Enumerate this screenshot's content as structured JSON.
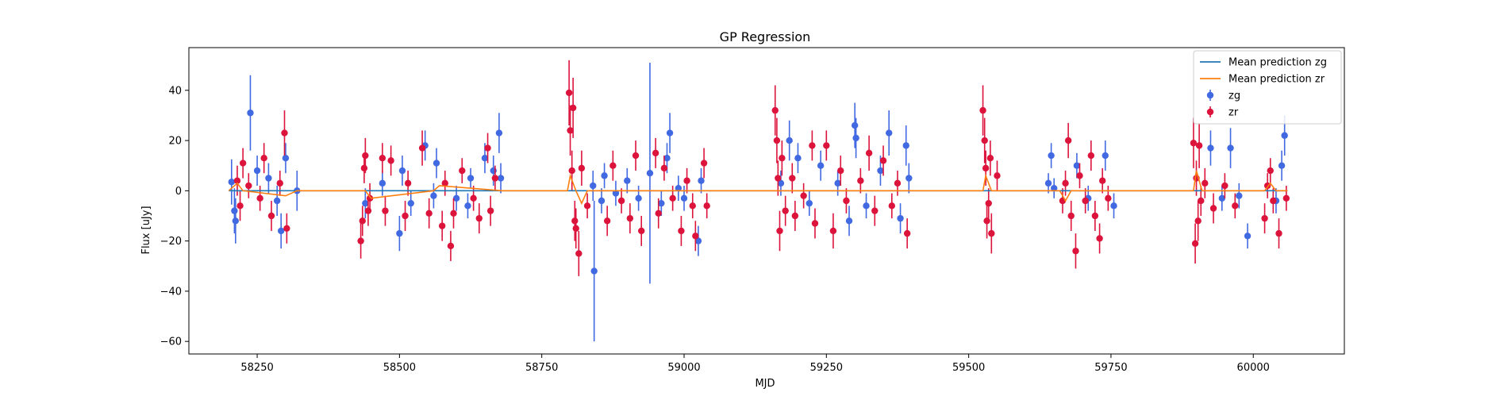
{
  "chart_data": {
    "type": "scatter",
    "title": "GP Regression",
    "xlabel": "MJD",
    "ylabel": "Flux [uJy]",
    "xlim": [
      58130,
      60160
    ],
    "ylim": [
      -65,
      57
    ],
    "xticks": [
      58250,
      58500,
      58750,
      59000,
      59250,
      59500,
      59750,
      60000
    ],
    "yticks": [
      -60,
      -40,
      -20,
      0,
      20,
      40
    ],
    "grid": false,
    "legend_position": "top-right",
    "colors": {
      "mean_zg": "#1f77b4",
      "mean_zr": "#ff7f0e",
      "zg": "#4169e1",
      "zr": "#dc143c"
    },
    "series": [
      {
        "name": "Mean prediction zg",
        "kind": "line",
        "x": [
          58200,
          58320,
          58440,
          58680,
          58800,
          59040,
          59160,
          59400,
          59520,
          59560,
          59640,
          59770,
          59900,
          60060
        ],
        "y": [
          0,
          0,
          0,
          0,
          0,
          0,
          0,
          0,
          0,
          0,
          0,
          0,
          0,
          0
        ]
      },
      {
        "name": "Mean prediction zr",
        "kind": "line",
        "x": [
          58200,
          58215,
          58225,
          58300,
          58320,
          58440,
          58450,
          58560,
          58570,
          58680,
          58795,
          58800,
          58810,
          58820,
          58830,
          59040,
          59160,
          59400,
          59525,
          59530,
          59540,
          59560,
          59660,
          59670,
          59680,
          59760,
          59895,
          59900,
          59910,
          60020,
          60030,
          60040,
          60060
        ],
        "y": [
          0,
          3,
          0,
          -2,
          0,
          0,
          -3,
          0,
          2,
          0,
          0,
          6,
          0,
          -5,
          0,
          0,
          0,
          0,
          0,
          6,
          0,
          0,
          0,
          -4,
          0,
          0,
          0,
          8,
          0,
          0,
          3,
          0,
          0
        ]
      },
      {
        "name": "zg",
        "kind": "errorbar",
        "points": [
          {
            "x": 58205,
            "y": 3.5,
            "e": 9
          },
          {
            "x": 58210,
            "y": -8,
            "e": 9
          },
          {
            "x": 58212,
            "y": -12,
            "e": 9
          },
          {
            "x": 58238,
            "y": 31,
            "e": 15
          },
          {
            "x": 58250,
            "y": 8,
            "e": 6
          },
          {
            "x": 58270,
            "y": 5,
            "e": 6
          },
          {
            "x": 58285,
            "y": -4,
            "e": 6
          },
          {
            "x": 58292,
            "y": -16,
            "e": 7
          },
          {
            "x": 58300,
            "y": 13,
            "e": 6
          },
          {
            "x": 58320,
            "y": 0,
            "e": 8
          },
          {
            "x": 58440,
            "y": -5,
            "e": 6
          },
          {
            "x": 58470,
            "y": 3,
            "e": 5
          },
          {
            "x": 58500,
            "y": -17,
            "e": 7
          },
          {
            "x": 58505,
            "y": 8,
            "e": 6
          },
          {
            "x": 58520,
            "y": -5,
            "e": 5
          },
          {
            "x": 58545,
            "y": 18,
            "e": 6
          },
          {
            "x": 58560,
            "y": -2,
            "e": 5
          },
          {
            "x": 58565,
            "y": 11,
            "e": 6
          },
          {
            "x": 58600,
            "y": -3,
            "e": 5
          },
          {
            "x": 58620,
            "y": -6,
            "e": 5
          },
          {
            "x": 58625,
            "y": 5,
            "e": 4
          },
          {
            "x": 58650,
            "y": 13,
            "e": 6
          },
          {
            "x": 58665,
            "y": 8,
            "e": 6
          },
          {
            "x": 58675,
            "y": 23,
            "e": 8
          },
          {
            "x": 58678,
            "y": 5,
            "e": 6
          },
          {
            "x": 58840,
            "y": 2,
            "e": 6
          },
          {
            "x": 58842,
            "y": -32,
            "e": 28
          },
          {
            "x": 58855,
            "y": -4,
            "e": 5
          },
          {
            "x": 58860,
            "y": 6,
            "e": 5
          },
          {
            "x": 58880,
            "y": -1,
            "e": 5
          },
          {
            "x": 58900,
            "y": 4,
            "e": 5
          },
          {
            "x": 58920,
            "y": -3,
            "e": 5
          },
          {
            "x": 58940,
            "y": 7,
            "e": 44
          },
          {
            "x": 58960,
            "y": -5,
            "e": 5
          },
          {
            "x": 58970,
            "y": 13,
            "e": 6
          },
          {
            "x": 58975,
            "y": 23,
            "e": 8
          },
          {
            "x": 58990,
            "y": 1,
            "e": 5
          },
          {
            "x": 59000,
            "y": -3,
            "e": 5
          },
          {
            "x": 59025,
            "y": -20,
            "e": 6
          },
          {
            "x": 59030,
            "y": 4,
            "e": 5
          },
          {
            "x": 59170,
            "y": 3,
            "e": 5
          },
          {
            "x": 59185,
            "y": 20,
            "e": 8
          },
          {
            "x": 59200,
            "y": 13,
            "e": 6
          },
          {
            "x": 59220,
            "y": -5,
            "e": 5
          },
          {
            "x": 59240,
            "y": 10,
            "e": 6
          },
          {
            "x": 59270,
            "y": 3,
            "e": 5
          },
          {
            "x": 59290,
            "y": -12,
            "e": 6
          },
          {
            "x": 59300,
            "y": 26,
            "e": 9
          },
          {
            "x": 59302,
            "y": 21,
            "e": 8
          },
          {
            "x": 59320,
            "y": -6,
            "e": 5
          },
          {
            "x": 59345,
            "y": 8,
            "e": 6
          },
          {
            "x": 59360,
            "y": 23,
            "e": 9
          },
          {
            "x": 59380,
            "y": -11,
            "e": 6
          },
          {
            "x": 59390,
            "y": 18,
            "e": 8
          },
          {
            "x": 59395,
            "y": 5,
            "e": 6
          },
          {
            "x": 59640,
            "y": 3,
            "e": 4
          },
          {
            "x": 59645,
            "y": 14,
            "e": 5
          },
          {
            "x": 59650,
            "y": 1,
            "e": 4
          },
          {
            "x": 59690,
            "y": 10,
            "e": 5
          },
          {
            "x": 59710,
            "y": -3,
            "e": 5
          },
          {
            "x": 59740,
            "y": 14,
            "e": 6
          },
          {
            "x": 59755,
            "y": -6,
            "e": 5
          },
          {
            "x": 59925,
            "y": 17,
            "e": 7
          },
          {
            "x": 59945,
            "y": -3,
            "e": 5
          },
          {
            "x": 59960,
            "y": 17,
            "e": 8
          },
          {
            "x": 59975,
            "y": -2,
            "e": 5
          },
          {
            "x": 59990,
            "y": -18,
            "e": 5
          },
          {
            "x": 60040,
            "y": -4,
            "e": 5
          },
          {
            "x": 60050,
            "y": 10,
            "e": 6
          },
          {
            "x": 60055,
            "y": 22,
            "e": 8
          }
        ]
      },
      {
        "name": "zr",
        "kind": "errorbar",
        "points": [
          {
            "x": 58215,
            "y": 4,
            "e": 6
          },
          {
            "x": 58220,
            "y": -6,
            "e": 6
          },
          {
            "x": 58225,
            "y": 11,
            "e": 6
          },
          {
            "x": 58235,
            "y": 2,
            "e": 5
          },
          {
            "x": 58255,
            "y": -3,
            "e": 5
          },
          {
            "x": 58262,
            "y": 13,
            "e": 6
          },
          {
            "x": 58275,
            "y": -10,
            "e": 6
          },
          {
            "x": 58290,
            "y": 3,
            "e": 5
          },
          {
            "x": 58298,
            "y": 23,
            "e": 9
          },
          {
            "x": 58302,
            "y": -15,
            "e": 6
          },
          {
            "x": 58432,
            "y": -20,
            "e": 7
          },
          {
            "x": 58435,
            "y": -12,
            "e": 6
          },
          {
            "x": 58438,
            "y": 9,
            "e": 6
          },
          {
            "x": 58440,
            "y": 14,
            "e": 7
          },
          {
            "x": 58445,
            "y": -8,
            "e": 6
          },
          {
            "x": 58448,
            "y": -3,
            "e": 6
          },
          {
            "x": 58470,
            "y": 13,
            "e": 6
          },
          {
            "x": 58475,
            "y": -8,
            "e": 6
          },
          {
            "x": 58485,
            "y": 12,
            "e": 6
          },
          {
            "x": 58510,
            "y": -10,
            "e": 6
          },
          {
            "x": 58515,
            "y": 3,
            "e": 5
          },
          {
            "x": 58540,
            "y": 17,
            "e": 7
          },
          {
            "x": 58552,
            "y": -9,
            "e": 6
          },
          {
            "x": 58575,
            "y": -14,
            "e": 6
          },
          {
            "x": 58580,
            "y": 3,
            "e": 5
          },
          {
            "x": 58590,
            "y": -22,
            "e": 6
          },
          {
            "x": 58595,
            "y": -9,
            "e": 6
          },
          {
            "x": 58610,
            "y": 8,
            "e": 5
          },
          {
            "x": 58630,
            "y": -3,
            "e": 5
          },
          {
            "x": 58640,
            "y": -11,
            "e": 6
          },
          {
            "x": 58655,
            "y": 17,
            "e": 6
          },
          {
            "x": 58660,
            "y": -8,
            "e": 6
          },
          {
            "x": 58668,
            "y": 5,
            "e": 5
          },
          {
            "x": 58798,
            "y": 39,
            "e": 13
          },
          {
            "x": 58800,
            "y": 24,
            "e": 10
          },
          {
            "x": 58803,
            "y": 8,
            "e": 8
          },
          {
            "x": 58805,
            "y": 33,
            "e": 12
          },
          {
            "x": 58808,
            "y": -12,
            "e": 8
          },
          {
            "x": 58810,
            "y": -15,
            "e": 8
          },
          {
            "x": 58815,
            "y": -25,
            "e": 9
          },
          {
            "x": 58820,
            "y": 9,
            "e": 7
          },
          {
            "x": 58830,
            "y": -6,
            "e": 5
          },
          {
            "x": 58865,
            "y": -12,
            "e": 6
          },
          {
            "x": 58875,
            "y": 10,
            "e": 6
          },
          {
            "x": 58890,
            "y": -4,
            "e": 5
          },
          {
            "x": 58905,
            "y": -11,
            "e": 6
          },
          {
            "x": 58915,
            "y": 14,
            "e": 6
          },
          {
            "x": 58925,
            "y": -16,
            "e": 6
          },
          {
            "x": 58950,
            "y": 15,
            "e": 6
          },
          {
            "x": 58955,
            "y": -9,
            "e": 6
          },
          {
            "x": 58965,
            "y": 9,
            "e": 5
          },
          {
            "x": 58980,
            "y": -3,
            "e": 5
          },
          {
            "x": 58995,
            "y": -16,
            "e": 6
          },
          {
            "x": 59005,
            "y": 4,
            "e": 5
          },
          {
            "x": 59015,
            "y": -6,
            "e": 5
          },
          {
            "x": 59020,
            "y": -18,
            "e": 6
          },
          {
            "x": 59035,
            "y": 11,
            "e": 6
          },
          {
            "x": 59040,
            "y": -6,
            "e": 5
          },
          {
            "x": 59160,
            "y": 32,
            "e": 10
          },
          {
            "x": 59163,
            "y": 20,
            "e": 9
          },
          {
            "x": 59165,
            "y": 5,
            "e": 7
          },
          {
            "x": 59168,
            "y": -16,
            "e": 8
          },
          {
            "x": 59172,
            "y": 13,
            "e": 7
          },
          {
            "x": 59178,
            "y": -8,
            "e": 6
          },
          {
            "x": 59190,
            "y": 5,
            "e": 6
          },
          {
            "x": 59195,
            "y": -10,
            "e": 6
          },
          {
            "x": 59210,
            "y": -2,
            "e": 5
          },
          {
            "x": 59225,
            "y": 18,
            "e": 6
          },
          {
            "x": 59230,
            "y": -13,
            "e": 6
          },
          {
            "x": 59250,
            "y": 18,
            "e": 6
          },
          {
            "x": 59262,
            "y": -16,
            "e": 7
          },
          {
            "x": 59275,
            "y": 8,
            "e": 6
          },
          {
            "x": 59285,
            "y": -4,
            "e": 5
          },
          {
            "x": 59310,
            "y": 4,
            "e": 5
          },
          {
            "x": 59325,
            "y": 15,
            "e": 7
          },
          {
            "x": 59335,
            "y": -8,
            "e": 6
          },
          {
            "x": 59350,
            "y": 12,
            "e": 6
          },
          {
            "x": 59365,
            "y": -6,
            "e": 5
          },
          {
            "x": 59375,
            "y": 3,
            "e": 5
          },
          {
            "x": 59392,
            "y": -17,
            "e": 6
          },
          {
            "x": 59525,
            "y": 32,
            "e": 10
          },
          {
            "x": 59528,
            "y": 20,
            "e": 9
          },
          {
            "x": 59530,
            "y": 9,
            "e": 7
          },
          {
            "x": 59532,
            "y": -12,
            "e": 7
          },
          {
            "x": 59535,
            "y": -5,
            "e": 6
          },
          {
            "x": 59538,
            "y": 13,
            "e": 7
          },
          {
            "x": 59540,
            "y": -17,
            "e": 8
          },
          {
            "x": 59550,
            "y": 6,
            "e": 6
          },
          {
            "x": 59665,
            "y": -4,
            "e": 5
          },
          {
            "x": 59670,
            "y": 3,
            "e": 5
          },
          {
            "x": 59675,
            "y": 20,
            "e": 7
          },
          {
            "x": 59680,
            "y": -10,
            "e": 6
          },
          {
            "x": 59688,
            "y": -24,
            "e": 7
          },
          {
            "x": 59695,
            "y": 6,
            "e": 5
          },
          {
            "x": 59705,
            "y": -4,
            "e": 5
          },
          {
            "x": 59715,
            "y": 14,
            "e": 6
          },
          {
            "x": 59722,
            "y": -10,
            "e": 6
          },
          {
            "x": 59730,
            "y": -19,
            "e": 6
          },
          {
            "x": 59735,
            "y": 4,
            "e": 5
          },
          {
            "x": 59745,
            "y": -3,
            "e": 5
          },
          {
            "x": 59895,
            "y": 19,
            "e": 10
          },
          {
            "x": 59898,
            "y": -21,
            "e": 8
          },
          {
            "x": 59900,
            "y": 5,
            "e": 7
          },
          {
            "x": 59903,
            "y": -12,
            "e": 8
          },
          {
            "x": 59905,
            "y": 18,
            "e": 9
          },
          {
            "x": 59908,
            "y": -4,
            "e": 6
          },
          {
            "x": 59915,
            "y": 3,
            "e": 6
          },
          {
            "x": 59930,
            "y": -7,
            "e": 6
          },
          {
            "x": 59950,
            "y": 2,
            "e": 5
          },
          {
            "x": 59968,
            "y": -6,
            "e": 5
          },
          {
            "x": 60020,
            "y": -11,
            "e": 6
          },
          {
            "x": 60025,
            "y": 2,
            "e": 5
          },
          {
            "x": 60030,
            "y": 8,
            "e": 5
          },
          {
            "x": 60035,
            "y": -4,
            "e": 5
          },
          {
            "x": 60045,
            "y": -17,
            "e": 6
          },
          {
            "x": 60058,
            "y": -3,
            "e": 5
          }
        ]
      }
    ]
  }
}
